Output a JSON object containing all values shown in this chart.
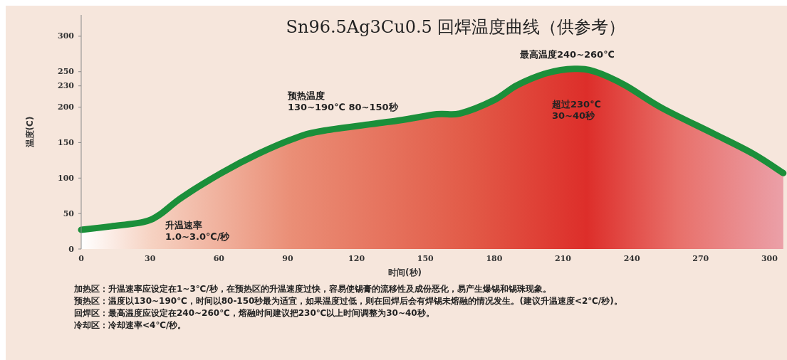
{
  "chart_data": {
    "type": "area",
    "title": "Sn96.5Ag3Cu0.5 回焊温度曲线（供参考）",
    "xlabel": "时间(秒)",
    "ylabel": "温度(C)",
    "series": [
      {
        "color": "#1b8f3a",
        "x": [
          0,
          13,
          27,
          34,
          44,
          61,
          77,
          93,
          106,
          138,
          155,
          165,
          180,
          190,
          203,
          215,
          224,
          237,
          253,
          276,
          293,
          306
        ],
        "values": [
          27,
          32,
          38,
          48,
          73,
          107,
          134,
          156,
          167,
          181,
          190,
          191,
          210,
          231,
          248,
          254,
          250,
          231,
          199,
          162,
          134,
          107
        ]
      }
    ],
    "xlim": [
      0,
      307
    ],
    "xticks": [
      0,
      30,
      60,
      90,
      120,
      150,
      180,
      210,
      240,
      270,
      300
    ],
    "ylim": [
      0,
      330
    ],
    "yticks": [
      0,
      50,
      100,
      150,
      200,
      230,
      250,
      300
    ],
    "annotations": [
      "升温速率\n1.0~3.0℃/秒",
      "预热温度\n130~190℃ 80~150秒",
      "最高温度240~260℃",
      "超过230℃\n30~40秒",
      "加热区：升温速率应设定在1~3℃/秒，在预热区的升温速度过快，容易使锡膏的流移性及成份恶化，易产生爆锡和锡珠现象。",
      "预热区：温度以130~190℃，时间以80-150秒最为适宜，如果温度过低，则在回焊后会有焊锡未熔融的情况发生。(建议升温速度<2℃/秒)。",
      "回焊区：最高温度应设定在240~260℃，熔融时间建议把230℃以上时间调整为30~40秒。",
      "冷却区：冷却速率<4℃/秒。"
    ]
  }
}
